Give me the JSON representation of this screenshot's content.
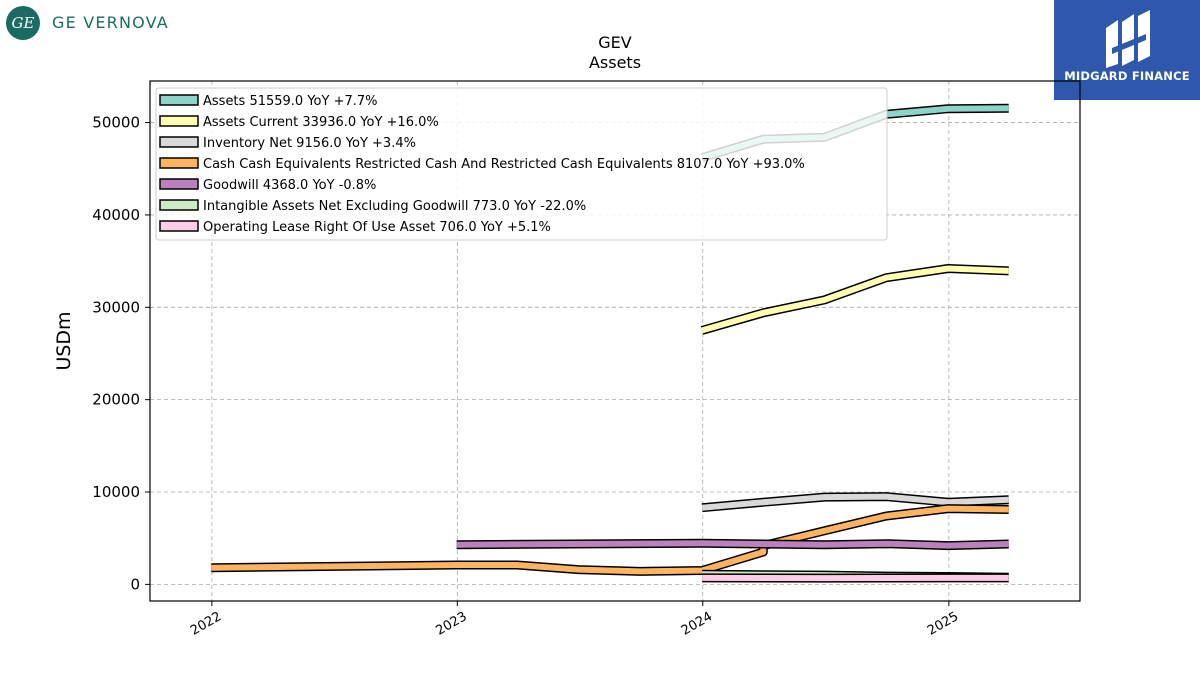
{
  "logos": {
    "left_text": "GE VERNOVA",
    "left_mark": "GE",
    "right_text": "MIDGARD FINANCE"
  },
  "chart_data": {
    "type": "line",
    "title": "GEV",
    "subtitle": "Assets",
    "ylabel": "USDm",
    "xlabel": "",
    "x_ticks": [
      "2022",
      "2023",
      "2024",
      "2025"
    ],
    "y_ticks": [
      "0",
      "10000",
      "20000",
      "30000",
      "40000",
      "50000"
    ],
    "ylim": [
      -1800,
      54500
    ],
    "xlim": [
      "2021-10-01",
      "2025-07-15"
    ],
    "grid": true,
    "legend_position": "top-left",
    "series": [
      {
        "name": "Assets",
        "legend": "Assets  51559.0 YoY +7.7%",
        "color": "#8dd3c7",
        "points": [
          [
            "2023-12-31",
            46200
          ],
          [
            "2024-03-31",
            48200
          ],
          [
            "2024-06-30",
            48400
          ],
          [
            "2024-09-30",
            50900
          ],
          [
            "2024-12-31",
            51500
          ],
          [
            "2025-03-31",
            51559
          ]
        ]
      },
      {
        "name": "Assets Current",
        "legend": "Assets Current  33936.0 YoY +16.0%",
        "color": "#ffffb3",
        "points": [
          [
            "2023-12-31",
            27500
          ],
          [
            "2024-03-31",
            29400
          ],
          [
            "2024-06-30",
            30800
          ],
          [
            "2024-09-30",
            33200
          ],
          [
            "2024-12-31",
            34200
          ],
          [
            "2025-03-31",
            33936
          ]
        ]
      },
      {
        "name": "Inventory Net",
        "legend": "Inventory Net  9156.0 YoY +3.4%",
        "color": "#d9d9d9",
        "points": [
          [
            "2023-12-31",
            8300
          ],
          [
            "2024-03-31",
            8900
          ],
          [
            "2024-06-30",
            9450
          ],
          [
            "2024-09-30",
            9500
          ],
          [
            "2024-12-31",
            8900
          ],
          [
            "2025-03-31",
            9156
          ]
        ]
      },
      {
        "name": "Cash Cash Equivalents Restricted Cash And Restricted Cash Equivalents",
        "legend": "Cash Cash Equivalents Restricted Cash And Restricted Cash Equivalents  8107.0 YoY +93.0%",
        "color": "#fdb462",
        "points": [
          [
            "2021-12-31",
            1800
          ],
          [
            "2022-12-31",
            2100
          ],
          [
            "2023-03-31",
            2100
          ],
          [
            "2023-06-30",
            1600
          ],
          [
            "2023-09-30",
            1400
          ],
          [
            "2023-12-31",
            1500
          ],
          [
            "2024-03-31",
            3500
          ],
          [
            "2024-03-31",
            4200
          ],
          [
            "2024-06-30",
            5800
          ],
          [
            "2024-09-30",
            7400
          ],
          [
            "2024-12-31",
            8200
          ],
          [
            "2025-03-31",
            8107
          ]
        ]
      },
      {
        "name": "Goodwill",
        "legend": "Goodwill  4368.0 YoY -0.8%",
        "color": "#bc80bd",
        "points": [
          [
            "2022-12-31",
            4300
          ],
          [
            "2023-12-31",
            4450
          ],
          [
            "2024-06-30",
            4300
          ],
          [
            "2024-09-30",
            4400
          ],
          [
            "2024-12-31",
            4200
          ],
          [
            "2025-03-31",
            4368
          ]
        ]
      },
      {
        "name": "Intangible Assets Net Excluding Goodwill",
        "legend": "Intangible Assets Net Excluding Goodwill  773.0 YoY -22.0%",
        "color": "#ccebc5",
        "points": [
          [
            "2023-12-31",
            1100
          ],
          [
            "2024-03-31",
            1050
          ],
          [
            "2024-06-30",
            1000
          ],
          [
            "2024-09-30",
            900
          ],
          [
            "2024-12-31",
            850
          ],
          [
            "2025-03-31",
            773
          ]
        ]
      },
      {
        "name": "Operating Lease Right Of Use Asset",
        "legend": "Operating Lease Right Of Use Asset  706.0 YoY +5.1%",
        "color": "#fccde5",
        "points": [
          [
            "2023-12-31",
            700
          ],
          [
            "2024-03-31",
            690
          ],
          [
            "2024-06-30",
            680
          ],
          [
            "2024-09-30",
            690
          ],
          [
            "2024-12-31",
            700
          ],
          [
            "2025-03-31",
            706
          ]
        ]
      }
    ]
  }
}
